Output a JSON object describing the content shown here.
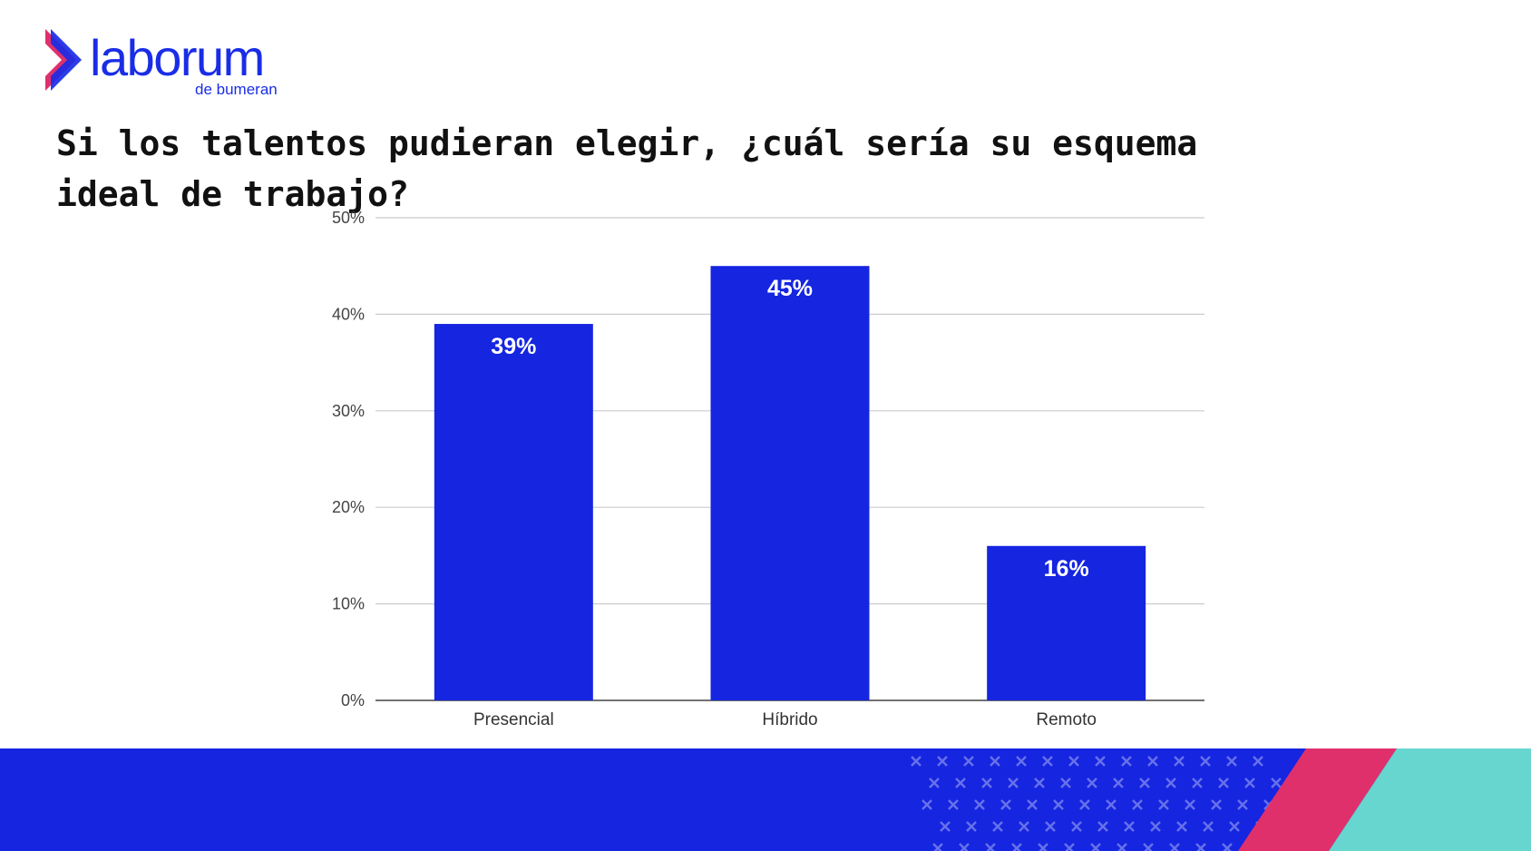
{
  "brand": {
    "name": "laborum",
    "sub": "de bumeran",
    "colors": {
      "blue": "#1a2de6",
      "pink": "#e0306c",
      "teal": "#66d6cf"
    }
  },
  "title": "Si los talentos pudieran elegir, ¿cuál sería su esquema ideal de trabajo?",
  "chart_data": {
    "type": "bar",
    "categories": [
      "Presencial",
      "Híbrido",
      "Remoto"
    ],
    "values": [
      39,
      45,
      16
    ],
    "value_labels": [
      "39%",
      "45%",
      "16%"
    ],
    "yticks": [
      "0%",
      "10%",
      "20%",
      "30%",
      "40%",
      "50%"
    ],
    "ylim": [
      0,
      50
    ],
    "grid": true,
    "bar_color": "#1525e0",
    "xlabel": "",
    "ylabel": ""
  }
}
